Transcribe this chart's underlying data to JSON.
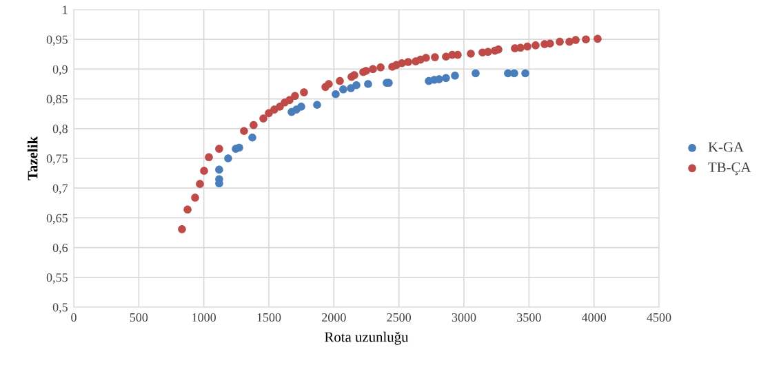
{
  "chart_data": {
    "type": "scatter",
    "xlabel": "Rota uzunluğu",
    "ylabel": "Tazelik",
    "xlim": [
      0,
      4500
    ],
    "ylim": [
      0.5,
      1
    ],
    "xticks": [
      0,
      500,
      1000,
      1500,
      2000,
      2500,
      3000,
      3500,
      4000,
      4500
    ],
    "yticks": [
      {
        "value": 0.5,
        "label": "0,5"
      },
      {
        "value": 0.55,
        "label": "0,55"
      },
      {
        "value": 0.6,
        "label": "0,6"
      },
      {
        "value": 0.65,
        "label": "0,65"
      },
      {
        "value": 0.7,
        "label": "0,7"
      },
      {
        "value": 0.75,
        "label": "0,75"
      },
      {
        "value": 0.8,
        "label": "0,8"
      },
      {
        "value": 0.85,
        "label": "0,85"
      },
      {
        "value": 0.9,
        "label": "0,9"
      },
      {
        "value": 0.95,
        "label": "0,95"
      },
      {
        "value": 1,
        "label": "1"
      }
    ],
    "grid": true,
    "legend": "right",
    "marker": "circle",
    "series": [
      {
        "name": "K-GA",
        "color": "#4a7ebb",
        "x": [
          1118,
          1118,
          1118,
          1187,
          1246,
          1272,
          1373,
          1675,
          1712,
          1749,
          1871,
          2014,
          2072,
          2131,
          2173,
          2263,
          2406,
          2422,
          2730,
          2772,
          2809,
          2862,
          2931,
          3090,
          3339,
          3387,
          3472
        ],
        "values": [
          0.731,
          0.715,
          0.708,
          0.75,
          0.766,
          0.768,
          0.785,
          0.828,
          0.832,
          0.837,
          0.84,
          0.858,
          0.866,
          0.868,
          0.873,
          0.875,
          0.877,
          0.877,
          0.88,
          0.882,
          0.883,
          0.885,
          0.889,
          0.893,
          0.893,
          0.893,
          0.893
        ]
      },
      {
        "name": "TB-ÇA",
        "color": "#be4b48",
        "x": [
          832,
          875,
          933,
          970,
          1002,
          1039,
          1118,
          1309,
          1383,
          1458,
          1500,
          1542,
          1585,
          1622,
          1659,
          1701,
          1770,
          1935,
          1961,
          2046,
          2136,
          2157,
          2226,
          2247,
          2300,
          2359,
          2449,
          2481,
          2523,
          2571,
          2629,
          2666,
          2708,
          2777,
          2862,
          2910,
          2952,
          3053,
          3143,
          3185,
          3238,
          3265,
          3392,
          3435,
          3488,
          3551,
          3620,
          3662,
          3737,
          3811,
          3859,
          3938,
          4028
        ],
        "values": [
          0.631,
          0.664,
          0.684,
          0.707,
          0.729,
          0.752,
          0.766,
          0.796,
          0.806,
          0.817,
          0.826,
          0.832,
          0.837,
          0.844,
          0.848,
          0.855,
          0.861,
          0.87,
          0.875,
          0.88,
          0.887,
          0.89,
          0.895,
          0.897,
          0.9,
          0.903,
          0.904,
          0.907,
          0.91,
          0.912,
          0.913,
          0.916,
          0.919,
          0.92,
          0.921,
          0.924,
          0.924,
          0.926,
          0.928,
          0.929,
          0.931,
          0.933,
          0.935,
          0.936,
          0.938,
          0.94,
          0.942,
          0.943,
          0.946,
          0.946,
          0.949,
          0.95,
          0.951
        ]
      }
    ]
  }
}
